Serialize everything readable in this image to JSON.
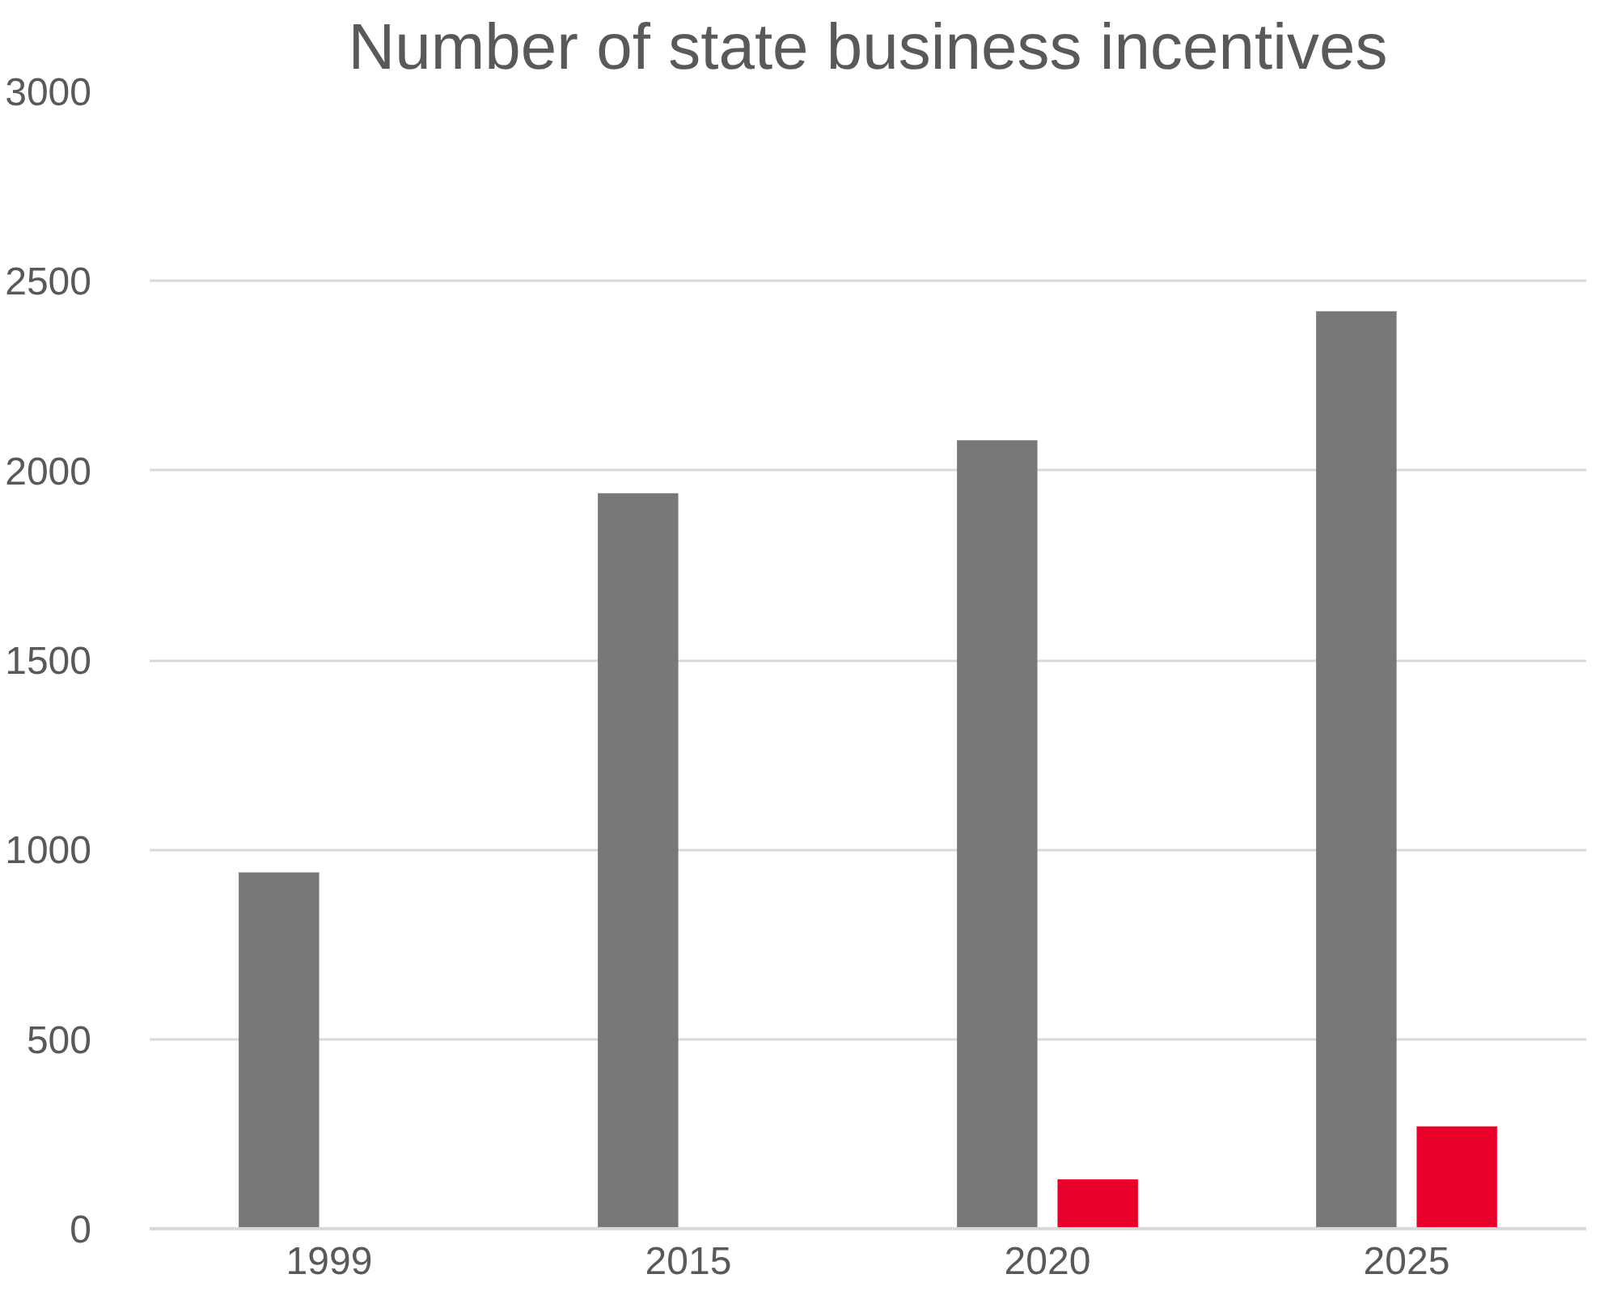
{
  "chart_data": {
    "type": "bar",
    "title": "Number of state business incentives",
    "categories": [
      "1999",
      "2015",
      "2020",
      "2025"
    ],
    "series": [
      {
        "color": "#787878",
        "values": [
          940,
          1940,
          2080,
          2420
        ]
      },
      {
        "color": "#e8002a",
        "values": [
          null,
          null,
          130,
          270
        ]
      }
    ],
    "ylim": [
      0,
      3000
    ],
    "yticks": [
      0,
      500,
      1000,
      1500,
      2000,
      2500,
      3000
    ],
    "grid": "y"
  }
}
